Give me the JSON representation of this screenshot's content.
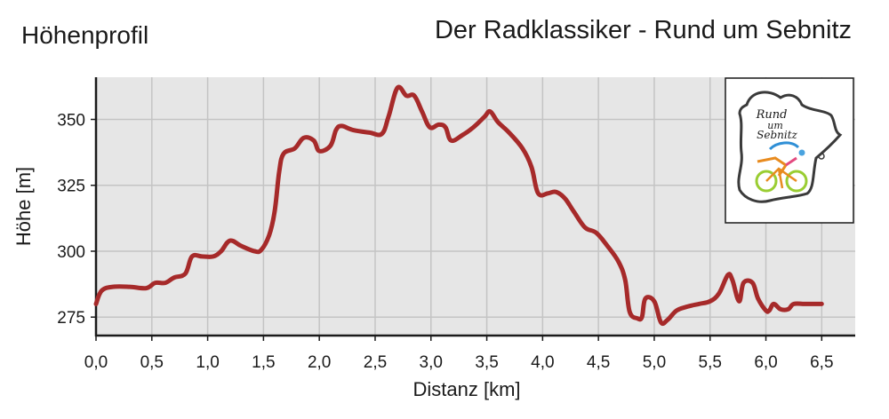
{
  "header": {
    "left_title": "Höhenprofil",
    "right_title": "Der Radklassiker - Rund um Sebnitz"
  },
  "logo": {
    "text_lines": [
      "Rund",
      "um",
      "Sebnitz"
    ]
  },
  "colors": {
    "line": "#a62a2a",
    "plot_bg": "#e6e6e6",
    "grid": "#c4c4c4",
    "axis": "#1a1a1a"
  },
  "chart_data": {
    "type": "line",
    "title": "Der Radklassiker - Rund um Sebnitz",
    "xlabel": "Distanz [km]",
    "ylabel": "Höhe [m]",
    "xlim": [
      0,
      6.8
    ],
    "ylim": [
      268,
      366
    ],
    "x_ticks": [
      "0,0",
      "0,5",
      "1,0",
      "1,5",
      "2,0",
      "2,5",
      "3,0",
      "3,5",
      "4,0",
      "4,5",
      "5,0",
      "5,5",
      "6,0",
      "6,5"
    ],
    "x_tick_values": [
      0,
      0.5,
      1.0,
      1.5,
      2.0,
      2.5,
      3.0,
      3.5,
      4.0,
      4.5,
      5.0,
      5.5,
      6.0,
      6.5
    ],
    "y_ticks": [
      "275",
      "300",
      "325",
      "350"
    ],
    "y_tick_values": [
      275,
      300,
      325,
      350
    ],
    "grid": true,
    "series": [
      {
        "points": [
          [
            0.0,
            280
          ],
          [
            0.05,
            285
          ],
          [
            0.15,
            286.5
          ],
          [
            0.3,
            286.5
          ],
          [
            0.45,
            286
          ],
          [
            0.53,
            288
          ],
          [
            0.62,
            288
          ],
          [
            0.7,
            290
          ],
          [
            0.8,
            291.5
          ],
          [
            0.86,
            298
          ],
          [
            0.95,
            298
          ],
          [
            1.05,
            298
          ],
          [
            1.12,
            300
          ],
          [
            1.2,
            304
          ],
          [
            1.3,
            302
          ],
          [
            1.42,
            300
          ],
          [
            1.48,
            300.5
          ],
          [
            1.55,
            306
          ],
          [
            1.6,
            315
          ],
          [
            1.64,
            330
          ],
          [
            1.68,
            337
          ],
          [
            1.78,
            339
          ],
          [
            1.86,
            343
          ],
          [
            1.95,
            342
          ],
          [
            2.0,
            338
          ],
          [
            2.1,
            340
          ],
          [
            2.15,
            346
          ],
          [
            2.2,
            347.5
          ],
          [
            2.3,
            346
          ],
          [
            2.45,
            345
          ],
          [
            2.56,
            344.5
          ],
          [
            2.62,
            351
          ],
          [
            2.7,
            362
          ],
          [
            2.78,
            359
          ],
          [
            2.85,
            359
          ],
          [
            2.92,
            353
          ],
          [
            2.99,
            347
          ],
          [
            3.07,
            348
          ],
          [
            3.13,
            347
          ],
          [
            3.18,
            342
          ],
          [
            3.28,
            344
          ],
          [
            3.38,
            347
          ],
          [
            3.48,
            351
          ],
          [
            3.53,
            353
          ],
          [
            3.6,
            349
          ],
          [
            3.7,
            345
          ],
          [
            3.82,
            339
          ],
          [
            3.9,
            332
          ],
          [
            3.96,
            322
          ],
          [
            4.05,
            322
          ],
          [
            4.12,
            322.5
          ],
          [
            4.2,
            320
          ],
          [
            4.28,
            315
          ],
          [
            4.38,
            309
          ],
          [
            4.48,
            307
          ],
          [
            4.58,
            302
          ],
          [
            4.68,
            296
          ],
          [
            4.74,
            289
          ],
          [
            4.78,
            277
          ],
          [
            4.85,
            274.5
          ],
          [
            4.89,
            275
          ],
          [
            4.92,
            282
          ],
          [
            5.0,
            281
          ],
          [
            5.06,
            273
          ],
          [
            5.12,
            274
          ],
          [
            5.2,
            277.5
          ],
          [
            5.3,
            279
          ],
          [
            5.4,
            280
          ],
          [
            5.5,
            281
          ],
          [
            5.58,
            284
          ],
          [
            5.66,
            291
          ],
          [
            5.7,
            289
          ],
          [
            5.76,
            281
          ],
          [
            5.8,
            288
          ],
          [
            5.88,
            288
          ],
          [
            5.93,
            282
          ],
          [
            6.0,
            277.5
          ],
          [
            6.03,
            277.5
          ],
          [
            6.07,
            280
          ],
          [
            6.13,
            278
          ],
          [
            6.2,
            278
          ],
          [
            6.25,
            280
          ],
          [
            6.35,
            280
          ],
          [
            6.5,
            280
          ]
        ]
      }
    ]
  }
}
